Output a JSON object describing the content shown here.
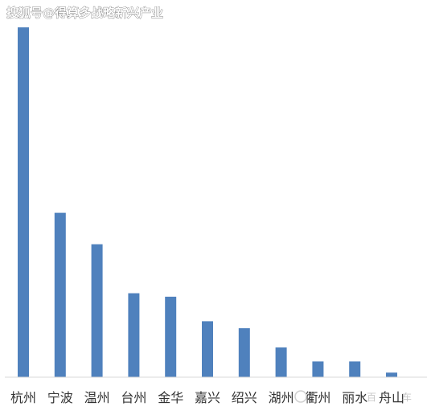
{
  "watermark": {
    "top_left": "搜狐号@得算多战略新兴产业",
    "bottom_right": "百",
    "bottom_right_suffix": "车"
  },
  "chart_data": {
    "type": "bar",
    "categories": [
      "杭州",
      "宁波",
      "温州",
      "台州",
      "金华",
      "嘉兴",
      "绍兴",
      "湖州",
      "衢州",
      "丽水",
      "舟山"
    ],
    "values": [
      100,
      47,
      38,
      24,
      23,
      16,
      14,
      8.5,
      4.5,
      4.5,
      1.3
    ],
    "bar_color": "#4f81bd",
    "grid": false,
    "legend": "none"
  }
}
